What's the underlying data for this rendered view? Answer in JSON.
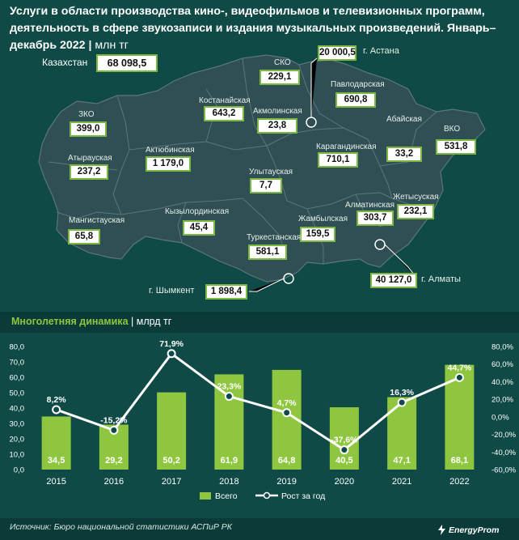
{
  "title": "Услуги в области производства кино-, видеофильмов и телевизионных программ, деятельность в сфере звукозаписи и издания музыкальных произведений. Январь–декабрь 2022",
  "title_unit": "млн тг",
  "map": {
    "country_label": "Казахстан",
    "country_value": "68 098,5",
    "regions": [
      {
        "name": "СКО",
        "value": "229,1"
      },
      {
        "name": "Павлодарская",
        "value": "690,8"
      },
      {
        "name": "Костанайская",
        "value": "643,2"
      },
      {
        "name": "Акмолинская",
        "value": "23,8"
      },
      {
        "name": "ЗКО",
        "value": "399,0"
      },
      {
        "name": "ВКО",
        "value": "531,8"
      },
      {
        "name": "Абайская",
        "value": "33,2"
      },
      {
        "name": "Атырауская",
        "value": "237,2"
      },
      {
        "name": "Актюбинская",
        "value": "1 179,0"
      },
      {
        "name": "Карагандинская",
        "value": "710,1"
      },
      {
        "name": "Улытауская",
        "value": "7,7"
      },
      {
        "name": "Жетысуская",
        "value": "232,1"
      },
      {
        "name": "Мангистауская",
        "value": "65,8"
      },
      {
        "name": "Кызылординская",
        "value": "45,4"
      },
      {
        "name": "Алматинская",
        "value": "303,7"
      },
      {
        "name": "Жамбылская",
        "value": "159,5"
      },
      {
        "name": "Туркестанская",
        "value": "581,1"
      }
    ],
    "cities": [
      {
        "name": "г. Астана",
        "value": "20 000,5"
      },
      {
        "name": "г. Шымкент",
        "value": "1 898,4"
      },
      {
        "name": "г. Алматы",
        "value": "40 127,0"
      }
    ]
  },
  "section_title": "Многолетняя динамика",
  "section_unit": "млрд тг",
  "colors": {
    "background": "#0f4a47",
    "map_fill": "#2f4f55",
    "bar": "#8fc63f",
    "line": "#ffffff",
    "value_border": "#7ab840"
  },
  "chart_data": {
    "type": "bar",
    "categories": [
      "2015",
      "2016",
      "2017",
      "2018",
      "2019",
      "2020",
      "2021",
      "2022"
    ],
    "series": [
      {
        "name": "Всего",
        "type": "bar",
        "axis": "left",
        "values": [
          34.5,
          29.2,
          50.2,
          61.9,
          64.8,
          40.5,
          47.1,
          68.1
        ],
        "labels": [
          "34,5",
          "29,2",
          "50,2",
          "61,9",
          "64,8",
          "40,5",
          "47,1",
          "68,1"
        ]
      },
      {
        "name": "Рост за год",
        "type": "line",
        "axis": "right",
        "values": [
          8.2,
          -15.2,
          71.9,
          23.3,
          4.7,
          -37.6,
          16.3,
          44.7
        ],
        "labels": [
          "8,2%",
          "-15,2%",
          "71,9%",
          "23,3%",
          "4,7%",
          "-37,6%",
          "16,3%",
          "44,7%"
        ]
      }
    ],
    "ylim_left": [
      0,
      80
    ],
    "ylim_right": [
      -60,
      80
    ],
    "left_ticks": [
      "0,0",
      "10,0",
      "20,0",
      "30,0",
      "40,0",
      "50,0",
      "60,0",
      "70,0",
      "80,0"
    ],
    "right_ticks": [
      "-60,0%",
      "-40,0%",
      "-20,0%",
      "0,0%",
      "20,0%",
      "40,0%",
      "60,0%",
      "80,0%"
    ],
    "grid": false,
    "legend": "bottom"
  },
  "footer": {
    "source": "Источник: Бюро национальной статистики АСПиР РК",
    "brand": "EnergyProm"
  }
}
